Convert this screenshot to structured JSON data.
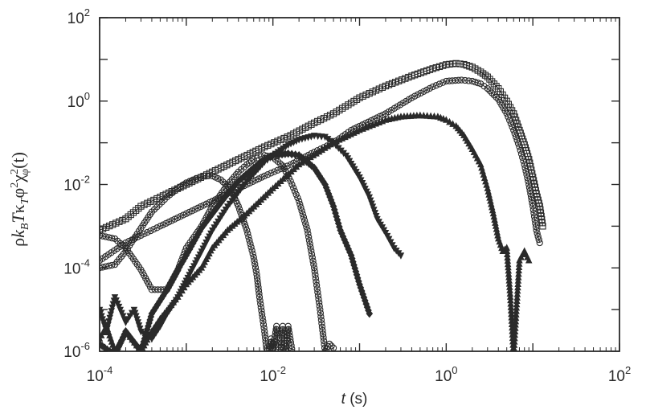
{
  "chart_data": {
    "type": "line",
    "title": "",
    "xlabel": "t (s)",
    "xlabel_parts": {
      "var": "t",
      "unit": " (s)"
    },
    "ylabel": "ρk_B T κ_T φ² χ²_φ(t)",
    "ylabel_parts": {
      "rho": "ρ",
      "k": "k",
      "B": "B",
      "T": "T",
      "kappa": "κ",
      "kappa_sub": "T",
      "phi": "φ",
      "two": "2",
      "chi": "χ",
      "chi_sup": "2",
      "chi_sub": "φ",
      "arg": "(t)"
    },
    "x_scale": "log",
    "y_scale": "log",
    "xlim": [
      0.0001,
      100
    ],
    "ylim": [
      1e-06,
      100
    ],
    "x_ticks": [
      {
        "base": "10",
        "exp": "-4"
      },
      {
        "base": "10",
        "exp": "-2"
      },
      {
        "base": "10",
        "exp": "0"
      },
      {
        "base": "10",
        "exp": "2"
      }
    ],
    "y_ticks": [
      {
        "base": "10",
        "exp": "-6"
      },
      {
        "base": "10",
        "exp": "-4"
      },
      {
        "base": "10",
        "exp": "-2"
      },
      {
        "base": "10",
        "exp": "0"
      },
      {
        "base": "10",
        "exp": "2"
      }
    ],
    "grid": false,
    "legend": "none",
    "color": "#2a2a2a",
    "series": [
      {
        "marker": "circle",
        "x": [
          0.0001,
          0.00015,
          0.0002,
          0.0003,
          0.0004,
          0.0006,
          0.0008,
          0.001,
          0.0013,
          0.0016,
          0.002,
          0.0025,
          0.003,
          0.0035,
          0.004,
          0.005,
          0.006,
          0.0065,
          0.007,
          0.008,
          0.0085,
          0.009,
          0.0095,
          0.01,
          0.011,
          0.012,
          0.013,
          0.014,
          0.015,
          0.017
        ],
        "y": [
          0.0001,
          0.00012,
          0.00025,
          0.0009,
          0.0022,
          0.005,
          0.008,
          0.011,
          0.014,
          0.016,
          0.016,
          0.013,
          0.009,
          0.0055,
          0.003,
          0.0008,
          0.00018,
          7e-05,
          2e-05,
          3e-06,
          1e-06,
          9e-07,
          2e-06,
          1e-06,
          4e-06,
          5e-07,
          4e-06,
          9e-07,
          4e-06,
          8e-07
        ]
      },
      {
        "marker": "circle",
        "x": [
          0.0001,
          0.00015,
          0.0002,
          0.0003,
          0.0004,
          0.0006,
          0.0008,
          0.001,
          0.0015,
          0.002,
          0.003,
          0.004,
          0.005,
          0.006,
          0.008,
          0.01,
          0.013,
          0.016,
          0.02,
          0.025,
          0.03,
          0.035,
          0.04,
          0.045,
          0.05
        ],
        "y": [
          0.0006,
          0.0005,
          0.0003,
          9e-05,
          3e-05,
          3e-05,
          9e-05,
          0.0003,
          0.001,
          0.003,
          0.01,
          0.02,
          0.03,
          0.04,
          0.05,
          0.045,
          0.028,
          0.012,
          0.004,
          0.0008,
          0.0001,
          1e-05,
          1e-06,
          1.5e-06,
          1.2e-06
        ]
      },
      {
        "marker": "diamond",
        "x": [
          0.0001,
          0.00015,
          0.0002,
          0.0003,
          0.0004,
          0.0006,
          0.0008,
          0.001,
          0.0015,
          0.002,
          0.003,
          0.004,
          0.006,
          0.008,
          0.01,
          0.015,
          0.02,
          0.03,
          0.04,
          0.05,
          0.06,
          0.08,
          0.1,
          0.13
        ],
        "y": [
          1.5e-06,
          8e-07,
          3e-06,
          1e-06,
          8e-06,
          3e-05,
          9e-05,
          0.0002,
          0.0009,
          0.002,
          0.006,
          0.012,
          0.025,
          0.04,
          0.05,
          0.055,
          0.05,
          0.025,
          0.01,
          0.003,
          0.0008,
          0.0002,
          4e-05,
          8e-06
        ]
      },
      {
        "marker": "down-triangle",
        "x": [
          0.0001,
          0.00012,
          0.00015,
          0.0002,
          0.00025,
          0.0003,
          0.0004,
          0.0005,
          0.0006,
          0.0008,
          0.001,
          0.0015,
          0.002,
          0.003,
          0.005,
          0.008,
          0.01,
          0.015,
          0.02,
          0.03,
          0.04,
          0.05,
          0.07,
          0.1,
          0.13,
          0.16,
          0.2,
          0.25,
          0.3
        ],
        "y": [
          1e-05,
          3e-06,
          2e-05,
          5e-06,
          1e-05,
          3e-06,
          2e-06,
          4e-06,
          8e-06,
          2e-05,
          5e-05,
          0.00025,
          0.0008,
          0.003,
          0.012,
          0.035,
          0.05,
          0.09,
          0.12,
          0.15,
          0.14,
          0.1,
          0.05,
          0.015,
          0.005,
          0.0015,
          0.0007,
          0.0003,
          0.0002
        ]
      },
      {
        "marker": "up-triangle",
        "x": [
          0.0001,
          0.00012,
          0.00015,
          0.0002,
          0.0003,
          0.0004,
          0.0005,
          0.0008,
          0.001,
          0.0015,
          0.002,
          0.003,
          0.005,
          0.01,
          0.02,
          0.05,
          0.1,
          0.2,
          0.3,
          0.5,
          0.8,
          1,
          1.3,
          1.6,
          2,
          2.5,
          3,
          3.5,
          4,
          4.5,
          5,
          5.5,
          6,
          7,
          8,
          9
        ],
        "y": [
          2e-06,
          4e-06,
          1e-06,
          3e-06,
          1e-06,
          3e-06,
          6e-06,
          2e-05,
          4e-05,
          0.0001,
          0.0003,
          0.0008,
          0.002,
          0.008,
          0.03,
          0.1,
          0.2,
          0.35,
          0.42,
          0.45,
          0.42,
          0.35,
          0.25,
          0.15,
          0.07,
          0.03,
          0.008,
          0.002,
          0.0005,
          0.00025,
          0.0003,
          2e-05,
          8e-07,
          0.00015,
          0.00025,
          0.00015
        ]
      },
      {
        "marker": "circle",
        "x": [
          0.0001,
          0.0002,
          0.0003,
          0.0005,
          0.001,
          0.002,
          0.004,
          0.008,
          0.016,
          0.03,
          0.05,
          0.08,
          0.1,
          0.2,
          0.4,
          0.7,
          1,
          1.5,
          2,
          2.5,
          3,
          4,
          5,
          6,
          7,
          8,
          9,
          10,
          11,
          12
        ],
        "y": [
          0.00015,
          0.0004,
          0.0006,
          0.001,
          0.002,
          0.004,
          0.008,
          0.016,
          0.03,
          0.06,
          0.1,
          0.2,
          0.25,
          0.5,
          1.2,
          2.2,
          3.0,
          3.2,
          3.0,
          2.6,
          2.0,
          1.1,
          0.5,
          0.2,
          0.08,
          0.03,
          0.01,
          0.003,
          0.0008,
          0.0004
        ]
      },
      {
        "marker": "square",
        "x": [
          0.0001,
          0.0002,
          0.0003,
          0.0005,
          0.001,
          0.002,
          0.004,
          0.008,
          0.016,
          0.03,
          0.05,
          0.08,
          0.1,
          0.2,
          0.4,
          0.7,
          1,
          1.3,
          1.6,
          2,
          2.5,
          3,
          4,
          5,
          6,
          7,
          8,
          9,
          10,
          11,
          12,
          13
        ],
        "y": [
          0.0008,
          0.0015,
          0.003,
          0.005,
          0.01,
          0.02,
          0.04,
          0.08,
          0.15,
          0.3,
          0.5,
          0.9,
          1.2,
          2.3,
          4.0,
          6.0,
          7.5,
          8.0,
          7.6,
          6.5,
          5.0,
          3.8,
          2.0,
          1.0,
          0.5,
          0.2,
          0.09,
          0.04,
          0.015,
          0.006,
          0.003,
          0.001
        ]
      }
    ]
  }
}
